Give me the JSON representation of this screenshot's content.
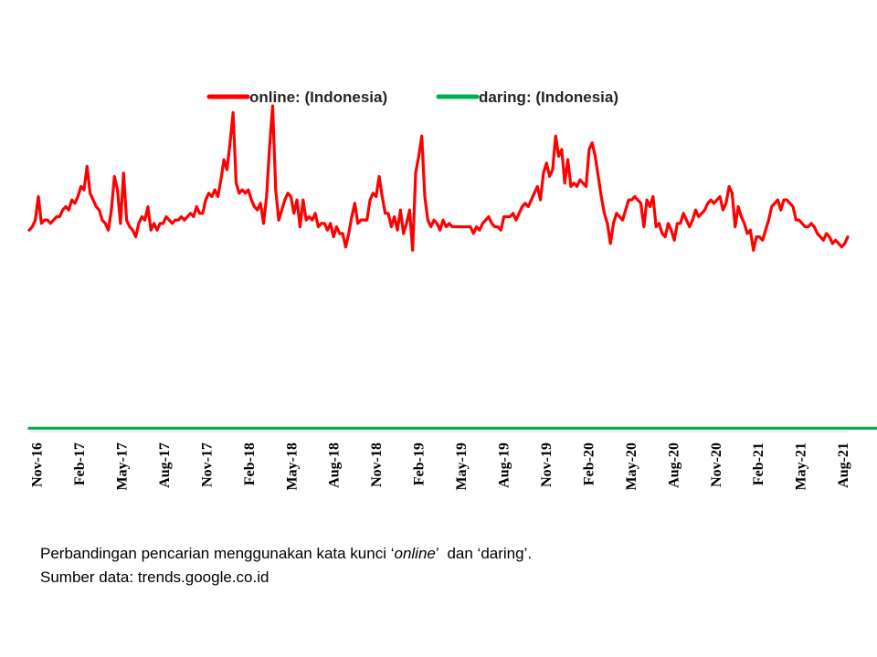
{
  "chart_data": {
    "type": "line",
    "title": "",
    "xlabel": "",
    "ylabel": "",
    "ylim": [
      0,
      100
    ],
    "grid": false,
    "legend": "top-center",
    "x_tick_labels": [
      "Nov-16",
      "Feb-17",
      "May-17",
      "Aug-17",
      "Nov-17",
      "Feb-18",
      "May-18",
      "Aug-18",
      "Nov-18",
      "Feb-19",
      "May-19",
      "Aug-19",
      "Nov-19",
      "Feb-20",
      "May-20",
      "Aug-20",
      "Nov-20",
      "Feb-21",
      "May-21",
      "Aug-21"
    ],
    "series": [
      {
        "name": "online: (Indonesia)",
        "color": "#ff0000",
        "values": [
          60,
          61,
          63,
          70,
          62,
          63,
          63,
          62,
          63,
          64,
          64,
          66,
          67,
          66,
          69,
          68,
          70,
          73,
          72,
          79,
          71,
          69,
          67,
          66,
          63,
          62,
          60,
          66,
          76,
          72,
          62,
          77,
          63,
          61,
          60,
          58,
          62,
          64,
          63,
          67,
          60,
          62,
          60,
          62,
          62,
          64,
          63,
          62,
          63,
          63,
          64,
          63,
          64,
          65,
          64,
          67,
          65,
          65,
          69,
          71,
          70,
          72,
          70,
          75,
          81,
          78,
          86,
          95,
          74,
          71,
          72,
          71,
          72,
          69,
          67,
          66,
          68,
          62,
          70,
          85,
          97,
          72,
          63,
          66,
          69,
          71,
          70,
          65,
          69,
          61,
          69,
          63,
          64,
          63,
          65,
          61,
          62,
          62,
          60,
          62,
          58,
          61,
          59,
          59,
          55,
          59,
          64,
          68,
          62,
          63,
          63,
          63,
          69,
          71,
          70,
          76,
          70,
          65,
          65,
          61,
          64,
          60,
          66,
          59,
          62,
          66,
          54,
          77,
          82,
          88,
          70,
          63,
          61,
          63,
          62,
          60,
          63,
          61,
          62,
          61,
          61,
          61,
          61,
          61,
          61,
          61,
          59,
          61,
          60,
          62,
          63,
          64,
          62,
          61,
          61,
          60,
          64,
          64,
          64,
          65,
          63,
          65,
          67,
          68,
          67,
          69,
          71,
          73,
          69,
          77,
          80,
          76,
          78,
          88,
          82,
          84,
          74,
          81,
          73,
          74,
          73,
          75,
          74,
          73,
          84,
          86,
          82,
          76,
          70,
          65,
          62,
          56,
          62,
          65,
          64,
          63,
          66,
          69,
          69,
          70,
          69,
          68,
          61,
          69,
          67,
          70,
          61,
          62,
          59,
          58,
          62,
          60,
          57,
          62,
          62,
          65,
          63,
          61,
          63,
          66,
          64,
          65,
          66,
          68,
          69,
          68,
          69,
          70,
          66,
          68,
          73,
          71,
          61,
          67,
          64,
          62,
          59,
          60,
          54,
          58,
          58,
          57,
          60,
          63,
          67,
          68,
          69,
          66,
          69,
          69,
          68,
          67,
          63,
          63,
          62,
          61,
          61,
          62,
          61,
          59,
          58,
          57,
          59,
          58,
          56,
          57,
          56,
          55,
          56,
          58
        ]
      },
      {
        "name": "daring: (Indonesia)",
        "color": "#00b050",
        "values": [
          1,
          1,
          1,
          1,
          1,
          1,
          1,
          1,
          1,
          1,
          1,
          1,
          1,
          1,
          1,
          1,
          1,
          1,
          1,
          1,
          1,
          1,
          1,
          1,
          1,
          1,
          1,
          1,
          1,
          1,
          1,
          1,
          1,
          1,
          1,
          1,
          1,
          1,
          1,
          1,
          1,
          1,
          1,
          1,
          1,
          1,
          1,
          1,
          1,
          1,
          1,
          1,
          1,
          1,
          1,
          1,
          1,
          1,
          1,
          1,
          1,
          1,
          1,
          1,
          1,
          1,
          1,
          1,
          1,
          1,
          1,
          1,
          1,
          1,
          1,
          1,
          1,
          1,
          1,
          1,
          1,
          1,
          1,
          1,
          1,
          1,
          1,
          1,
          1,
          1,
          1,
          1,
          1,
          1,
          1,
          1,
          1,
          1,
          1,
          1,
          1,
          1,
          1,
          1,
          1,
          1,
          1,
          1,
          1,
          1,
          1,
          1,
          1,
          1,
          1,
          1,
          1,
          1,
          1,
          1,
          1,
          1,
          1,
          1,
          1,
          1,
          1,
          1,
          1,
          1,
          1,
          1,
          1,
          1,
          1,
          1,
          1,
          1,
          1,
          1,
          1,
          1,
          1,
          1,
          1,
          1,
          1,
          1,
          1,
          1,
          1,
          1,
          1,
          1,
          1,
          1,
          1,
          1,
          1,
          1,
          1,
          1,
          1,
          1,
          1,
          1,
          1,
          1,
          1,
          1,
          1,
          1,
          1,
          1,
          1,
          1,
          1,
          1,
          1,
          1,
          1,
          1,
          1,
          1,
          1,
          1,
          1,
          1,
          1,
          1,
          1,
          1,
          1,
          1,
          1,
          1,
          1,
          1,
          1,
          1,
          1,
          1,
          1,
          1,
          1,
          1,
          1,
          1,
          1,
          1,
          1,
          1,
          1,
          1,
          1,
          1,
          1,
          1,
          1,
          1,
          1,
          1,
          1,
          1,
          1,
          1,
          1,
          1,
          1,
          1,
          1,
          1,
          1,
          1,
          1,
          1,
          1,
          1,
          1,
          1,
          1,
          1,
          1,
          1,
          1,
          1,
          1,
          1,
          1,
          1,
          1,
          1,
          1,
          1,
          1,
          1,
          1,
          1,
          1,
          1,
          1,
          1,
          1,
          1,
          1,
          1,
          1,
          1,
          1,
          1,
          1,
          1,
          1,
          1,
          1,
          1,
          1,
          1,
          1,
          1,
          1
        ]
      }
    ]
  },
  "caption": {
    "line1_prefix": "Perbandingan pencarian menggunakan kata kunci ‘",
    "line1_italic": "online",
    "line1_suffix": "’  dan ‘daring’.",
    "line2": "Sumber data: trends.google.co.id"
  }
}
